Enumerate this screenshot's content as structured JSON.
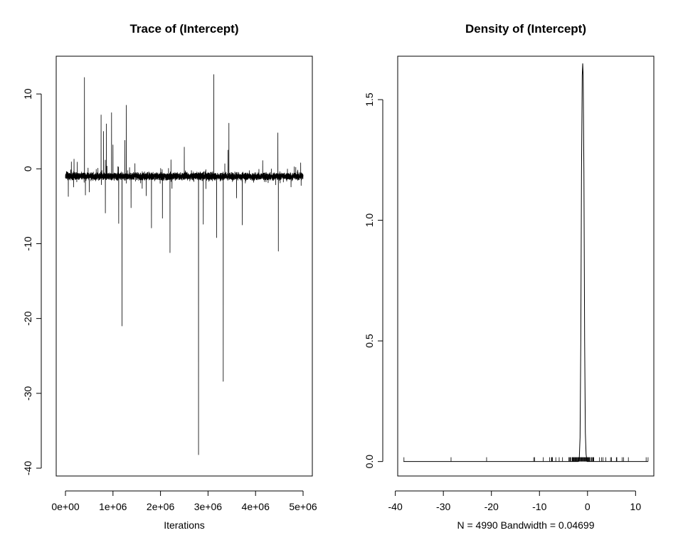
{
  "chart_data": [
    {
      "type": "line",
      "title": "Trace of (Intercept)",
      "xlabel": "Iterations",
      "ylabel": "",
      "xlim": [
        0,
        5000000
      ],
      "ylim": [
        -40,
        14
      ],
      "x_ticks": [
        0,
        1000000,
        2000000,
        3000000,
        4000000,
        5000000
      ],
      "x_tick_labels": [
        "0e+00",
        "1e+06",
        "2e+06",
        "3e+06",
        "4e+06",
        "5e+06"
      ],
      "y_ticks": [
        -40,
        -30,
        -20,
        -10,
        0,
        10
      ],
      "y_tick_labels": [
        "-40",
        "-30",
        "-20",
        "-10",
        "0",
        "10"
      ],
      "baseline": -1.0,
      "n_iterations": 4990,
      "spikes": [
        {
          "x": 60000,
          "y": -3.7
        },
        {
          "x": 180000,
          "y": 1.3
        },
        {
          "x": 250000,
          "y": 0.9
        },
        {
          "x": 400000,
          "y": 12.2
        },
        {
          "x": 420000,
          "y": -3.5
        },
        {
          "x": 500000,
          "y": -3.1
        },
        {
          "x": 750000,
          "y": 7.2
        },
        {
          "x": 800000,
          "y": 5.0
        },
        {
          "x": 840000,
          "y": -5.9
        },
        {
          "x": 860000,
          "y": 6.0
        },
        {
          "x": 970000,
          "y": 7.5
        },
        {
          "x": 1000000,
          "y": 3.2
        },
        {
          "x": 1120000,
          "y": -7.3
        },
        {
          "x": 1190000,
          "y": -21.0
        },
        {
          "x": 1250000,
          "y": 3.8
        },
        {
          "x": 1280000,
          "y": 8.5
        },
        {
          "x": 1380000,
          "y": -5.2
        },
        {
          "x": 1700000,
          "y": -3.6
        },
        {
          "x": 1810000,
          "y": -7.9
        },
        {
          "x": 2040000,
          "y": -6.6
        },
        {
          "x": 2200000,
          "y": -11.2
        },
        {
          "x": 2220000,
          "y": 1.2
        },
        {
          "x": 2500000,
          "y": 2.9
        },
        {
          "x": 2800000,
          "y": -38.2
        },
        {
          "x": 2900000,
          "y": -7.4
        },
        {
          "x": 3120000,
          "y": 12.6
        },
        {
          "x": 3180000,
          "y": -9.2
        },
        {
          "x": 3320000,
          "y": -28.4
        },
        {
          "x": 3420000,
          "y": 2.5
        },
        {
          "x": 3440000,
          "y": 6.1
        },
        {
          "x": 3600000,
          "y": -3.9
        },
        {
          "x": 3720000,
          "y": -7.5
        },
        {
          "x": 4150000,
          "y": 1.1
        },
        {
          "x": 4470000,
          "y": 4.8
        },
        {
          "x": 4480000,
          "y": -11.0
        },
        {
          "x": 4950000,
          "y": 0.8
        }
      ]
    },
    {
      "type": "line",
      "title": "Density of (Intercept)",
      "xlabel": "N = 4990   Bandwidth = 0.04699",
      "ylabel": "",
      "xlim": [
        -39.5,
        13.8
      ],
      "ylim": [
        -0.06,
        1.68
      ],
      "x_ticks": [
        -40,
        -30,
        -20,
        -10,
        0,
        10
      ],
      "x_tick_labels": [
        "-40",
        "-30",
        "-20",
        "-10",
        "0",
        "10"
      ],
      "y_ticks": [
        0,
        0.5,
        1,
        1.5
      ],
      "y_tick_labels": [
        "0.0",
        "0.5",
        "1.0",
        "1.5"
      ],
      "peak": {
        "x": -1.0,
        "y": 1.65
      },
      "density_curve": [
        {
          "x": -38.3,
          "y": 0
        },
        {
          "x": -1.9,
          "y": 0
        },
        {
          "x": -1.7,
          "y": 0.02
        },
        {
          "x": -1.55,
          "y": 0.1
        },
        {
          "x": -1.4,
          "y": 0.5
        },
        {
          "x": -1.25,
          "y": 1.2
        },
        {
          "x": -1.1,
          "y": 1.6
        },
        {
          "x": -1.0,
          "y": 1.65
        },
        {
          "x": -0.9,
          "y": 1.6
        },
        {
          "x": -0.75,
          "y": 1.2
        },
        {
          "x": -0.6,
          "y": 0.5
        },
        {
          "x": -0.45,
          "y": 0.12
        },
        {
          "x": -0.3,
          "y": 0.03
        },
        {
          "x": -0.1,
          "y": 0
        },
        {
          "x": 12.6,
          "y": 0
        }
      ],
      "rug_values": [
        -38.2,
        -28.4,
        -21.0,
        -11.2,
        -11.0,
        -9.2,
        -7.9,
        -7.5,
        -7.4,
        -7.3,
        -6.6,
        -5.9,
        -5.2,
        -3.9,
        -3.7,
        -3.6,
        -3.5,
        -3.1,
        0.8,
        0.9,
        1.1,
        1.2,
        1.3,
        2.5,
        2.9,
        3.2,
        3.8,
        4.8,
        5.0,
        6.0,
        6.1,
        7.2,
        7.5,
        8.5,
        12.2,
        12.6
      ]
    }
  ]
}
